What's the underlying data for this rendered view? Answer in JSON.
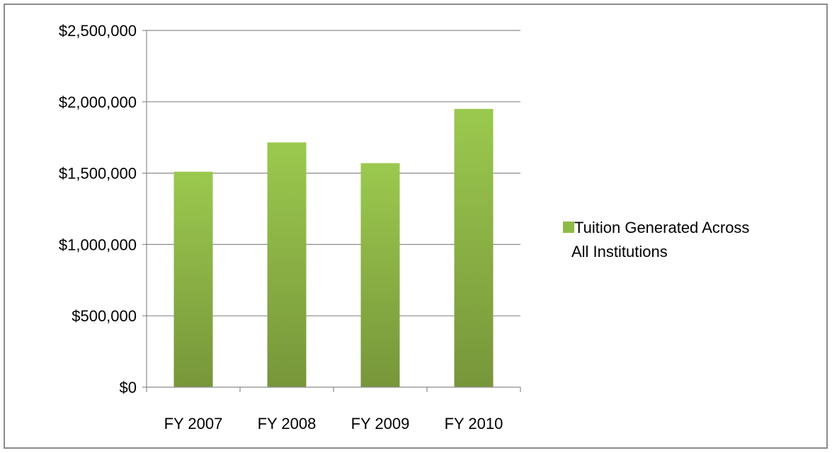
{
  "chart_data": {
    "type": "bar",
    "categories": [
      "FY 2007",
      "FY 2008",
      "FY 2009",
      "FY 2010"
    ],
    "series": [
      {
        "name": "Tuition Generated Across All Institutions",
        "values": [
          1510000,
          1715000,
          1570000,
          1950000
        ]
      }
    ],
    "ylim": [
      0,
      2500000
    ],
    "yticks": [
      0,
      500000,
      1000000,
      1500000,
      2000000,
      2500000
    ],
    "ytick_labels": [
      "$0",
      "$500,000",
      "$1,000,000",
      "$1,500,000",
      "$2,000,000",
      "$2,500,000"
    ],
    "title": "",
    "xlabel": "",
    "ylabel": "",
    "grid": true,
    "legend_position": "right",
    "legend_lines": [
      "Tuition Generated Across",
      "All Institutions"
    ],
    "bar_color_top": "#9bc94e",
    "bar_color_bottom": "#77963a",
    "legend_swatch_color": "#8fba45",
    "gridline_color": "#8c8c8c"
  }
}
